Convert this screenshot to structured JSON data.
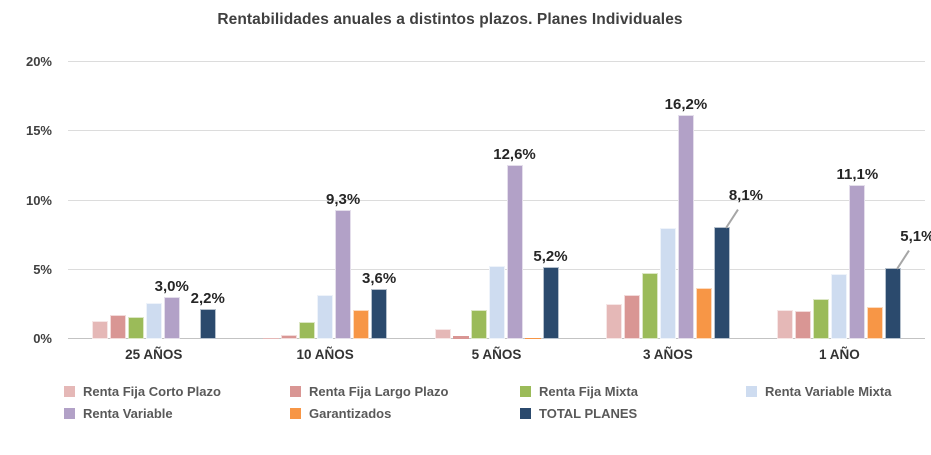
{
  "chart_data": {
    "type": "bar",
    "title": "Rentabilidades anuales a distintos plazos. Planes Individuales",
    "categories": [
      "25 AÑOS",
      "10 AÑOS",
      "5 AÑOS",
      "3 AÑOS",
      "1 AÑO"
    ],
    "series": [
      {
        "name": "Renta Fija Corto Plazo",
        "color": "#E5B8B7",
        "values": [
          1.3,
          0.1,
          0.7,
          2.5,
          2.1
        ]
      },
      {
        "name": "Renta Fija Largo Plazo",
        "color": "#D99694",
        "values": [
          1.7,
          0.3,
          0.2,
          3.2,
          2.0
        ]
      },
      {
        "name": "Renta Fija Mixta",
        "color": "#9BBB59",
        "values": [
          1.6,
          1.2,
          2.1,
          4.8,
          2.9
        ]
      },
      {
        "name": "Renta Variable Mixta",
        "color": "#CEDCF0",
        "values": [
          2.6,
          3.2,
          5.3,
          8.0,
          4.7
        ]
      },
      {
        "name": "Renta Variable",
        "color": "#B2A1C7",
        "values": [
          3.0,
          9.3,
          12.6,
          16.2,
          11.1
        ],
        "labels": [
          "3,0%",
          "9,3%",
          "12,6%",
          "16,2%",
          "11,1%"
        ],
        "callout_indexes": []
      },
      {
        "name": "Garantizados",
        "color": "#F79646",
        "values": [
          0.0,
          2.1,
          0.1,
          3.7,
          2.3
        ]
      },
      {
        "name": "TOTAL PLANES",
        "color": "#2B4A6D",
        "values": [
          2.2,
          3.6,
          5.2,
          8.1,
          5.1
        ],
        "labels": [
          "2,2%",
          "3,6%",
          "5,2%",
          "8,1%",
          "5,1%"
        ],
        "callout_indexes": [
          3,
          4
        ]
      }
    ],
    "xlabel": "",
    "ylabel": "",
    "ylim": [
      0,
      20
    ],
    "ytick_values": [
      0,
      5,
      10,
      15,
      20
    ],
    "ytick_labels": [
      "0%",
      "5%",
      "10%",
      "15%",
      "20%"
    ],
    "grid": "horizontal",
    "legend_position": "bottom",
    "colors": {
      "title_text": "#404040",
      "axis_text": "#404040",
      "category_text": "#333333",
      "data_label_text": "#262626",
      "legend_text": "#595959",
      "gridline": "#dcdcdc",
      "baseline": "#c3c3c3",
      "background": "#ffffff"
    }
  }
}
